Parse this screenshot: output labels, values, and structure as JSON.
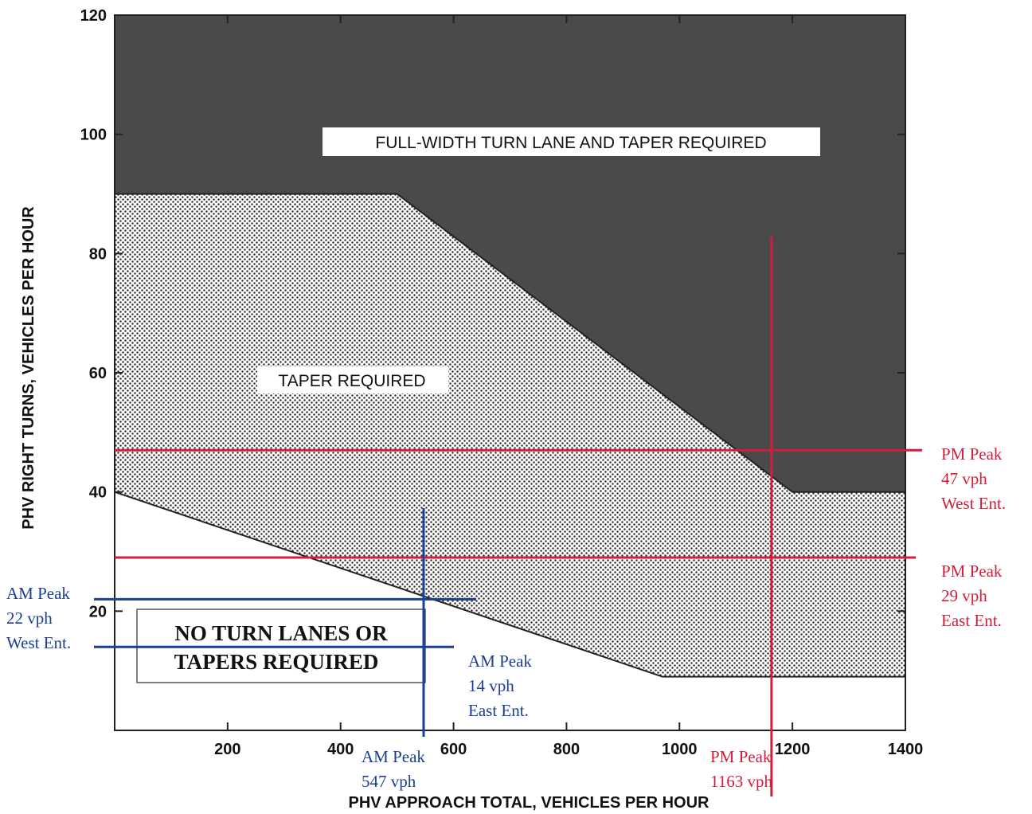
{
  "chart_data": {
    "type": "area",
    "xlabel": "PHV APPROACH TOTAL, VEHICLES PER HOUR",
    "ylabel": "PHV RIGHT TURNS, VEHICLES PER HOUR",
    "xlim": [
      0,
      1400
    ],
    "ylim": [
      0,
      120
    ],
    "xticks": [
      200,
      400,
      600,
      800,
      1000,
      1200,
      1400
    ],
    "yticks": [
      20,
      40,
      60,
      80,
      100,
      120
    ],
    "regions": [
      {
        "label": "FULL-WIDTH TURN LANE AND TAPER REQUIRED",
        "fill": "#4a4a4a"
      },
      {
        "label": "TAPER REQUIRED",
        "fill": "dotted"
      },
      {
        "label": "NO TURN LANES OR TAPERS REQUIRED",
        "fill": "#ffffff"
      }
    ],
    "boundaries": {
      "upper": {
        "x": [
          0,
          500,
          1200,
          1400
        ],
        "y": [
          90,
          90,
          40,
          40
        ]
      },
      "lower": {
        "x": [
          0,
          970,
          1400
        ],
        "y": [
          40,
          9,
          9
        ]
      }
    },
    "reference_lines": [
      {
        "orientation": "horizontal",
        "value": 47,
        "color": "#d01f3c",
        "label": [
          "PM Peak",
          "47 vph",
          "West Ent."
        ]
      },
      {
        "orientation": "horizontal",
        "value": 29,
        "color": "#d01f3c",
        "label": [
          "PM Peak",
          "29 vph",
          "East Ent."
        ]
      },
      {
        "orientation": "vertical",
        "value": 1163,
        "color": "#d01f3c",
        "label": [
          "PM Peak",
          "1163 vph"
        ]
      },
      {
        "orientation": "horizontal",
        "value": 22,
        "color": "#1a3f93",
        "label": [
          "AM Peak",
          "22 vph",
          "West Ent."
        ]
      },
      {
        "orientation": "horizontal",
        "value": 14,
        "color": "#1a3f93",
        "label": [
          "AM Peak",
          "14 vph",
          "East Ent."
        ]
      },
      {
        "orientation": "vertical",
        "value": 547,
        "color": "#1a3f93",
        "label": [
          "AM Peak",
          "547 vph"
        ]
      }
    ],
    "grid": false,
    "legend": "none"
  }
}
